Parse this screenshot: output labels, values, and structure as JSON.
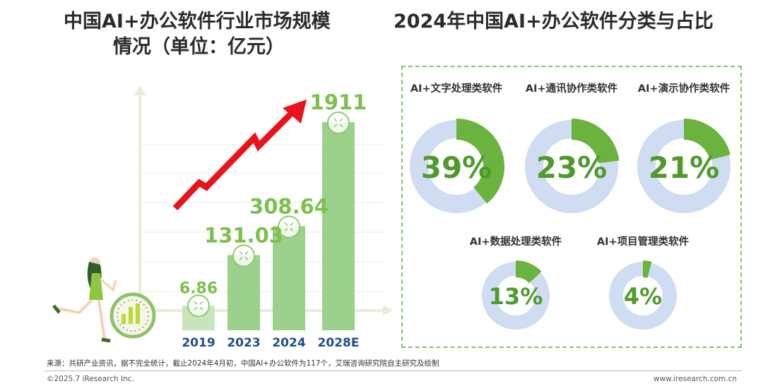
{
  "titles": {
    "left_line1": "中国AI+办公软件行业市场规模",
    "left_line2": "情况（单位：亿元）",
    "right": "2024年中国AI+办公软件分类与占比"
  },
  "chart_data": [
    {
      "type": "bar",
      "title": "中国AI+办公软件行业市场规模情况（单位：亿元）",
      "unit": "亿元",
      "categories": [
        "2019",
        "2023",
        "2024",
        "2028E"
      ],
      "values": [
        6.86,
        131.03,
        308.64,
        1911
      ],
      "value_labels": [
        "6.86",
        "131.03",
        "308.64",
        "1911"
      ],
      "ylim": [
        0,
        1911
      ],
      "axis_scale": "non-linear (illustrative heights)",
      "grid": true,
      "colors": {
        "bar": "#9bd18a",
        "bar_light": "#c6e6b9",
        "label": "#7cc04e",
        "category": "#1f4e8c",
        "arrow": "#e8131b"
      }
    },
    {
      "type": "pie",
      "style": "donut",
      "title": "2024年中国AI+办公软件分类与占比",
      "items": [
        {
          "label": "AI+文字处理类软件",
          "percent": 39,
          "text": "39%"
        },
        {
          "label": "AI+通讯协作类软件",
          "percent": 23,
          "text": "23%"
        },
        {
          "label": "AI+演示协作类软件",
          "percent": 21,
          "text": "21%"
        },
        {
          "label": "AI+数据处理类软件",
          "percent": 13,
          "text": "13%"
        },
        {
          "label": "AI+项目管理类软件",
          "percent": 4,
          "text": "4%"
        }
      ],
      "colors": {
        "filled": "#6bb33f",
        "track": "#cfdcf1",
        "text": "#4f9a2d"
      }
    }
  ],
  "footer": {
    "source": "来源：共研产业资讯，据不完全统计，截止2024年4月初，中国AI+办公软件为117个，艾瑞咨询研究院自主研究及绘制",
    "copyright": "©2025.7 iResearch Inc.",
    "url": "www.iresearch.com.cn"
  }
}
